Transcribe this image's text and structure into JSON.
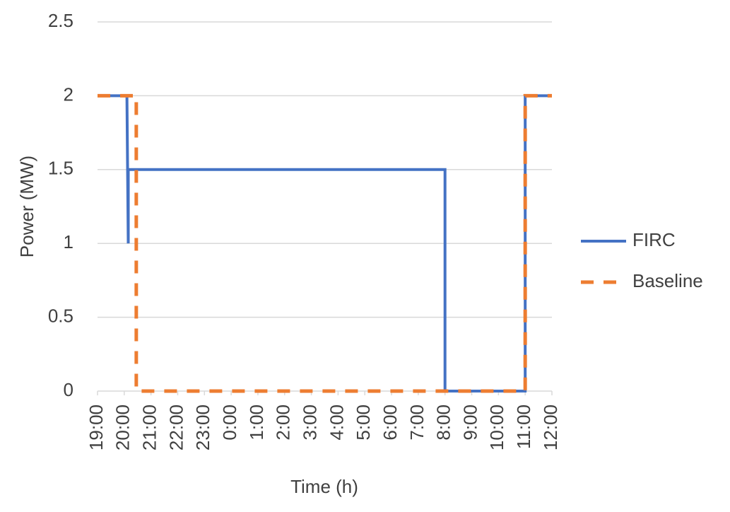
{
  "chart_data": {
    "type": "line",
    "x_label": "Time (h)",
    "y_label": "Power (MW)",
    "xlim": [
      19,
      36
    ],
    "xticks": [
      {
        "value": 19,
        "label": "19:00"
      },
      {
        "value": 20,
        "label": "20:00"
      },
      {
        "value": 21,
        "label": "21:00"
      },
      {
        "value": 22,
        "label": "22:00"
      },
      {
        "value": 23,
        "label": "23:00"
      },
      {
        "value": 24,
        "label": "0:00"
      },
      {
        "value": 25,
        "label": "1:00"
      },
      {
        "value": 26,
        "label": "2:00"
      },
      {
        "value": 27,
        "label": "3:00"
      },
      {
        "value": 28,
        "label": "4:00"
      },
      {
        "value": 29,
        "label": "5:00"
      },
      {
        "value": 30,
        "label": "6:00"
      },
      {
        "value": 31,
        "label": "7:00"
      },
      {
        "value": 32,
        "label": "8:00"
      },
      {
        "value": 33,
        "label": "9:00"
      },
      {
        "value": 34,
        "label": "10:00"
      },
      {
        "value": 35,
        "label": "11:00"
      },
      {
        "value": 36,
        "label": "12:00"
      }
    ],
    "ylim": [
      0,
      2.5
    ],
    "yticks": [
      0,
      0.5,
      1,
      1.5,
      2,
      2.5
    ],
    "grid": true,
    "legend": "right",
    "series": [
      {
        "name": "FIRC",
        "color": "#4472c4",
        "dashed": false,
        "x": [
          19,
          20.1,
          20.15,
          20.15,
          32,
          32,
          35,
          35,
          36
        ],
        "values": [
          2,
          2,
          1,
          1.5,
          1.5,
          0,
          0,
          2,
          2
        ]
      },
      {
        "name": "Baseline",
        "color": "#ed7d31",
        "dashed": true,
        "x": [
          19,
          20.45,
          20.45,
          35,
          35,
          36
        ],
        "values": [
          2,
          2,
          0,
          0,
          2,
          2
        ]
      }
    ]
  }
}
